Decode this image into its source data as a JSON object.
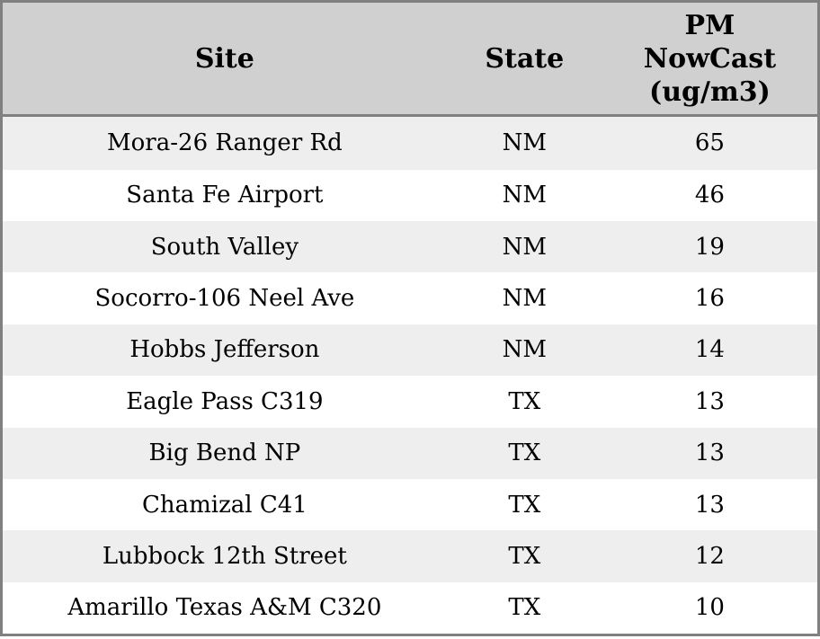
{
  "table": {
    "headers": {
      "site": "Site",
      "state": "State",
      "pm": "PM\nNowCast\n(ug/m3)"
    },
    "rows": [
      {
        "site": "Mora-26 Ranger Rd",
        "state": "NM",
        "pm": "65"
      },
      {
        "site": "Santa Fe Airport",
        "state": "NM",
        "pm": "46"
      },
      {
        "site": "South Valley",
        "state": "NM",
        "pm": "19"
      },
      {
        "site": "Socorro-106 Neel Ave",
        "state": "NM",
        "pm": "16"
      },
      {
        "site": "Hobbs Jefferson",
        "state": "NM",
        "pm": "14"
      },
      {
        "site": "Eagle Pass C319",
        "state": "TX",
        "pm": "13"
      },
      {
        "site": "Big Bend NP",
        "state": "TX",
        "pm": "13"
      },
      {
        "site": "Chamizal C41",
        "state": "TX",
        "pm": "13"
      },
      {
        "site": "Lubbock 12th Street",
        "state": "TX",
        "pm": "12"
      },
      {
        "site": "Amarillo Texas A&M C320",
        "state": "TX",
        "pm": "10"
      }
    ]
  },
  "chart_data": {
    "type": "table",
    "columns": [
      "Site",
      "State",
      "PM NowCast (ug/m3)"
    ],
    "rows": [
      [
        "Mora-26 Ranger Rd",
        "NM",
        65
      ],
      [
        "Santa Fe Airport",
        "NM",
        46
      ],
      [
        "South Valley",
        "NM",
        19
      ],
      [
        "Socorro-106 Neel Ave",
        "NM",
        16
      ],
      [
        "Hobbs Jefferson",
        "NM",
        14
      ],
      [
        "Eagle Pass C319",
        "TX",
        13
      ],
      [
        "Big Bend NP",
        "TX",
        13
      ],
      [
        "Chamizal C41",
        "TX",
        13
      ],
      [
        "Lubbock 12th Street",
        "TX",
        12
      ],
      [
        "Amarillo Texas A&M C320",
        "TX",
        10
      ]
    ]
  },
  "colors": {
    "header_bg": "#d0d0d0",
    "row_stripe_bg": "#eeeeee",
    "row_bg": "#ffffff",
    "border": "#808080",
    "text": "#000000"
  }
}
